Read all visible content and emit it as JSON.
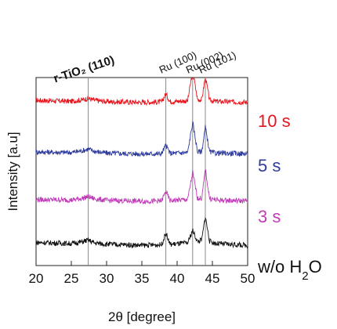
{
  "chart_data": {
    "type": "line",
    "xlabel": "2θ [degree]",
    "ylabel": "Intensity [a.u]",
    "xlim": [
      20,
      50
    ],
    "x_ticks": [
      20,
      25,
      30,
      35,
      40,
      45,
      50
    ],
    "grid": false,
    "reference_lines": [
      {
        "label": "r-TiO₂ (110)",
        "x": 27.4
      },
      {
        "label": "Ru (100)",
        "x": 38.4
      },
      {
        "label": "Ru (002)",
        "x": 42.2
      },
      {
        "label": "Ru (101)",
        "x": 44.0
      }
    ],
    "series": [
      {
        "name": "10 s",
        "color": "#e8141c",
        "x": [
          20,
          25,
          26.5,
          27.4,
          28.3,
          30,
          35,
          37.8,
          38.4,
          39,
          41.5,
          42.2,
          42.9,
          43.5,
          44.0,
          44.6,
          45.5,
          50
        ],
        "y": [
          1.9,
          1.7,
          1.95,
          2.2,
          1.9,
          1.65,
          1.55,
          1.6,
          3.0,
          1.65,
          1.8,
          7.0,
          2.0,
          2.0,
          6.0,
          1.9,
          1.7,
          1.55
        ]
      },
      {
        "name": "5 s",
        "color": "#2f3c9e",
        "x": [
          20,
          25,
          26.5,
          27.4,
          28.3,
          30,
          35,
          37.8,
          38.4,
          39,
          41.5,
          42.2,
          42.9,
          43.5,
          44.0,
          44.6,
          45.5,
          50
        ],
        "y": [
          1.9,
          1.8,
          2.1,
          2.4,
          2.0,
          1.7,
          1.55,
          1.6,
          3.1,
          1.65,
          1.8,
          7.0,
          1.9,
          2.0,
          6.2,
          1.9,
          1.7,
          1.6
        ]
      },
      {
        "name": "3 s",
        "color": "#c03cb6",
        "x": [
          20,
          25,
          26.5,
          27.4,
          28.3,
          30,
          35,
          37.8,
          38.4,
          39,
          41.5,
          42.2,
          42.9,
          43.5,
          44.0,
          44.6,
          45.5,
          50
        ],
        "y": [
          1.8,
          1.7,
          2.0,
          2.3,
          1.9,
          1.65,
          1.5,
          1.55,
          3.2,
          1.6,
          1.8,
          6.5,
          2.0,
          2.0,
          7.0,
          2.0,
          1.7,
          1.55
        ]
      },
      {
        "name": "w/o H",
        "name_sub": "2",
        "name_suffix": "O",
        "color": "#111111",
        "x": [
          20,
          25,
          26.5,
          27.4,
          28.3,
          30,
          35,
          37.8,
          38.4,
          39,
          41.5,
          42.2,
          42.9,
          43.5,
          44.0,
          44.6,
          45.5,
          50
        ],
        "y": [
          2.1,
          1.9,
          2.2,
          2.5,
          2.0,
          1.8,
          1.6,
          1.7,
          3.7,
          1.75,
          2.0,
          4.2,
          2.2,
          2.6,
          6.6,
          2.3,
          1.9,
          1.6
        ]
      }
    ]
  }
}
